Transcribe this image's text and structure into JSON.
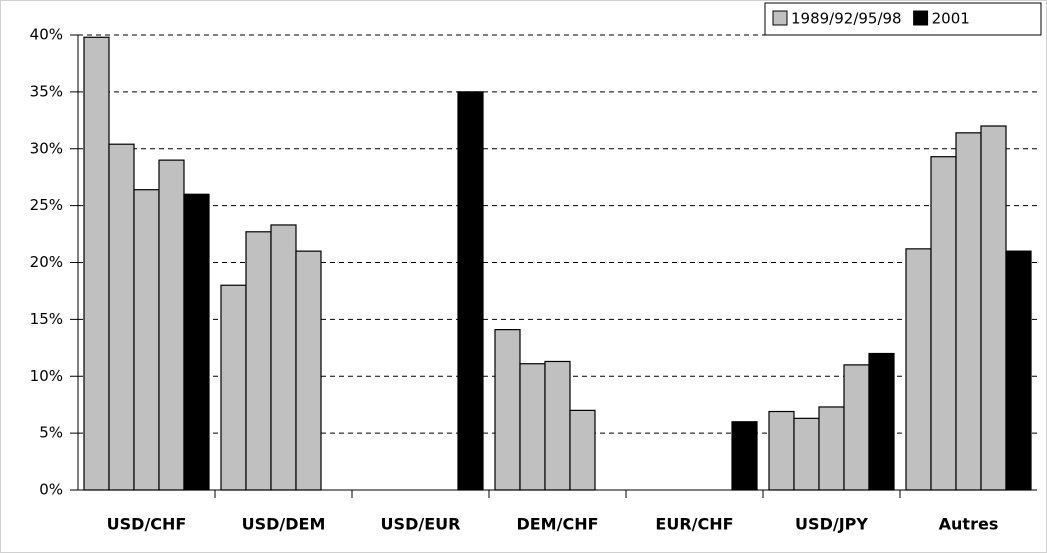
{
  "chart_data": {
    "type": "bar",
    "categories": [
      "USD/CHF",
      "USD/DEM",
      "USD/EUR",
      "DEM/CHF",
      "EUR/CHF",
      "USD/JPY",
      "Autres"
    ],
    "series": [
      {
        "name": "1989/92/95/98",
        "color": "#c0c0c0",
        "values": [
          [
            39.8,
            30.4,
            26.4,
            29
          ],
          [
            18,
            22.7,
            23.3,
            21
          ],
          [
            null,
            null,
            null,
            null
          ],
          [
            14.1,
            11.1,
            11.3,
            7
          ],
          [
            null,
            null,
            null,
            null
          ],
          [
            6.9,
            6.3,
            7.3,
            11
          ],
          [
            21.2,
            29.3,
            31.4,
            32
          ]
        ]
      },
      {
        "name": "2001",
        "color": "#000000",
        "values": [
          26,
          null,
          35,
          null,
          6,
          12,
          21
        ]
      }
    ],
    "ylim": [
      0,
      40
    ],
    "yticks": [
      {
        "value": 0,
        "label": "0%"
      },
      {
        "value": 5,
        "label": "5%"
      },
      {
        "value": 10,
        "label": "10%"
      },
      {
        "value": 15,
        "label": "15%"
      },
      {
        "value": 20,
        "label": "20%"
      },
      {
        "value": 25,
        "label": "25%"
      },
      {
        "value": 30,
        "label": "30%"
      },
      {
        "value": 35,
        "label": "35%"
      },
      {
        "value": 40,
        "label": "40%"
      }
    ],
    "grid": true,
    "legend": "top-right"
  }
}
